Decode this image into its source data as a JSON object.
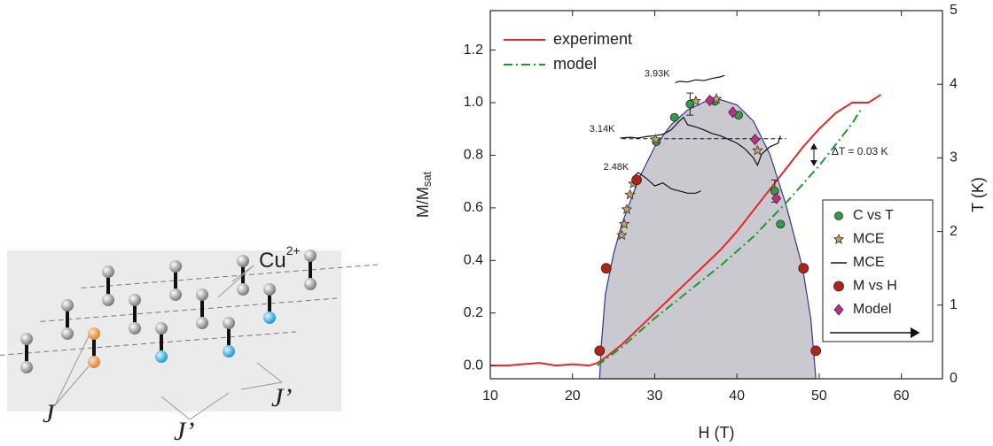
{
  "diagram": {
    "ion_label": {
      "text": "Cu",
      "sup": "2+"
    },
    "coupling_labels": [
      "J",
      "J’",
      "J’"
    ]
  },
  "chart_data": {
    "type": "line",
    "xlabel": "H (T)",
    "ylabel": {
      "text": "M/M",
      "sub": "sat"
    },
    "y2label": "T (K)",
    "xlim": [
      10,
      65
    ],
    "xticks": [
      10,
      20,
      30,
      40,
      50,
      60
    ],
    "ylim": [
      -0.05,
      1.35
    ],
    "yticks": [
      {
        "value": 0,
        "label": "0.0"
      },
      0.2,
      0.4,
      0.6,
      0.8,
      {
        "value": 1,
        "label": "1.0"
      },
      1.2
    ],
    "y2lim": [
      0,
      5
    ],
    "y2ticks": [
      0,
      1,
      2,
      3,
      4,
      5
    ],
    "series": [
      {
        "name": "experiment",
        "color": "#e02828",
        "style": "solid",
        "x": [
          10,
          12,
          14,
          16,
          18,
          20,
          22,
          23,
          24,
          26,
          28,
          30,
          32,
          34,
          36,
          38,
          40,
          42,
          44,
          46,
          48,
          50,
          52,
          54,
          56,
          57.5
        ],
        "values": [
          0,
          0,
          0.005,
          0.01,
          0,
          0.005,
          0,
          0.01,
          0.03,
          0.08,
          0.14,
          0.2,
          0.26,
          0.32,
          0.38,
          0.44,
          0.51,
          0.59,
          0.67,
          0.75,
          0.83,
          0.9,
          0.96,
          1.0,
          1.0,
          1.03
        ]
      },
      {
        "name": "model",
        "color": "#1f9a2a",
        "style": "dashdot",
        "x": [
          23,
          26,
          30,
          34,
          38,
          42,
          46,
          50,
          54,
          55
        ],
        "values": [
          0,
          0.07,
          0.18,
          0.28,
          0.38,
          0.49,
          0.62,
          0.76,
          0.92,
          0.97
        ]
      }
    ],
    "phase_boundary": {
      "axis": "y2",
      "color": "#34349a",
      "fill": "#c9c9cf",
      "x": [
        23.3,
        23.5,
        24,
        25,
        26,
        28,
        30,
        32,
        34,
        36,
        38,
        40,
        42,
        44,
        46,
        48,
        49,
        49.6
      ],
      "values": [
        0,
        0.45,
        1.15,
        1.7,
        2.1,
        2.7,
        3.15,
        3.45,
        3.65,
        3.76,
        3.79,
        3.72,
        3.5,
        3.05,
        2.35,
        1.5,
        0.8,
        0
      ]
    },
    "point_series": [
      {
        "name": "C vs T",
        "axis": "y2",
        "marker": "circle",
        "color": "#2e9e4a",
        "x": [
          30.2,
          32.4,
          34.3,
          37.3,
          40.2,
          44.6,
          45.3
        ],
        "values": [
          3.22,
          3.55,
          3.73,
          3.77,
          3.58,
          2.55,
          2.1
        ],
        "errors": [
          null,
          null,
          0.15,
          null,
          null,
          0.15,
          null
        ]
      },
      {
        "name": "MCE",
        "axis": "y2",
        "marker": "star",
        "color": "#c8a060",
        "x": [
          26.0,
          26.3,
          26.6,
          27.0,
          27.4,
          30.1,
          35.0,
          37.5,
          42.5
        ],
        "values": [
          1.95,
          2.1,
          2.3,
          2.5,
          2.65,
          3.25,
          3.77,
          3.8,
          3.1
        ]
      },
      {
        "name": "M vs H",
        "axis": "y2",
        "marker": "ball",
        "color": "#a8281e",
        "x": [
          23.3,
          24.1,
          27.8,
          48.1,
          49.6
        ],
        "values": [
          0.38,
          1.5,
          2.7,
          1.5,
          0.38
        ]
      },
      {
        "name": "Model",
        "axis": "y2",
        "marker": "diamond",
        "color": "#c8288c",
        "x": [
          36.7,
          39.5,
          42.2,
          44.8
        ],
        "values": [
          3.78,
          3.62,
          3.25,
          2.45
        ]
      }
    ],
    "trace_series": {
      "name": "MCE",
      "axis": "y2",
      "color": "#111111",
      "traces": [
        {
          "label": "3.93K",
          "x": [
            32.5,
            33,
            34,
            35,
            36,
            37,
            38,
            38.5
          ],
          "values": [
            4.02,
            4.04,
            4.03,
            4.06,
            4.05,
            4.08,
            4.1,
            4.12
          ]
        },
        {
          "label": "3.14K",
          "x": [
            25.8,
            27,
            28,
            29,
            30,
            31,
            32,
            33,
            33.5,
            34,
            35,
            36,
            37,
            38,
            39,
            40,
            41,
            42,
            42.5,
            43,
            44,
            45,
            45.3
          ],
          "values": [
            3.27,
            3.28,
            3.27,
            3.29,
            3.3,
            3.32,
            3.38,
            3.5,
            3.55,
            3.45,
            3.42,
            3.38,
            3.33,
            3.3,
            3.25,
            3.2,
            3.12,
            3.0,
            2.9,
            3.05,
            3.15,
            3.2,
            3.3
          ]
        },
        {
          "label": "2.48K",
          "x": [
            27.5,
            28,
            29,
            30,
            31,
            32,
            33,
            34,
            35,
            35.6
          ],
          "values": [
            2.75,
            2.8,
            2.72,
            2.62,
            2.66,
            2.58,
            2.55,
            2.52,
            2.52,
            2.55
          ]
        }
      ]
    },
    "reference_line": {
      "axis": "y2",
      "value": 3.26,
      "x": [
        26,
        46
      ],
      "label": "ΔT = 0.03 K"
    }
  }
}
